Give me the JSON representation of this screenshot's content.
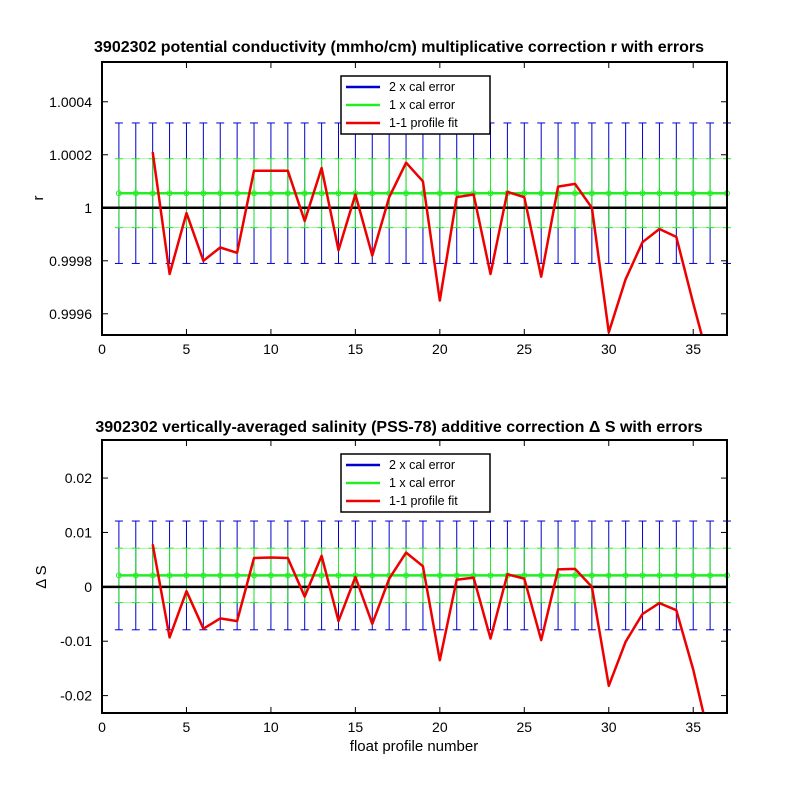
{
  "chart_data": [
    {
      "type": "line",
      "title": "3902302 potential conductivity (mmho/cm) multiplicative correction r with errors",
      "xlabel": "",
      "ylabel": "r",
      "xlim": [
        0,
        37
      ],
      "ylim": [
        0.99952,
        1.00055
      ],
      "xticks": [
        0,
        5,
        10,
        15,
        20,
        25,
        30,
        35
      ],
      "xtick_labels": [
        "0",
        "5",
        "10",
        "15",
        "20",
        "25",
        "30",
        "35"
      ],
      "yticks": [
        0.9996,
        0.9998,
        1.0,
        1.0002,
        1.0004
      ],
      "ytick_labels": [
        "0.9996",
        "0.9998",
        "1",
        "1.0002",
        "1.0004"
      ],
      "grid": false,
      "legend_position": "top-center",
      "reference_line": 1.0,
      "error_x": [
        1,
        2,
        3,
        4,
        5,
        6,
        7,
        8,
        9,
        10,
        11,
        12,
        13,
        14,
        15,
        16,
        17,
        18,
        19,
        20,
        21,
        22,
        23,
        24,
        25,
        26,
        27,
        28,
        29,
        30,
        31,
        32,
        33,
        34,
        35,
        36,
        37
      ],
      "cal_center": 1.000055,
      "err2": 0.000265,
      "err1": 0.00013,
      "series": [
        {
          "name": "2 x cal error",
          "color": "#0000cc",
          "kind": "errorbar2"
        },
        {
          "name": "1 x cal error",
          "color": "#22ee22",
          "kind": "errorbar1"
        },
        {
          "name": "1-1 profile fit",
          "color": "#ee0000",
          "kind": "line",
          "x": [
            3,
            4,
            5,
            6,
            7,
            8,
            9,
            10,
            11,
            12,
            13,
            14,
            15,
            16,
            17,
            18,
            19,
            20,
            21,
            22,
            23,
            24,
            25,
            26,
            27,
            28,
            29,
            30,
            31,
            32,
            33,
            34,
            35,
            35.5
          ],
          "y": [
            1.00021,
            0.99975,
            0.99998,
            0.9998,
            0.99985,
            0.99983,
            1.00014,
            1.00014,
            1.00014,
            0.99995,
            1.00015,
            0.99984,
            1.00005,
            0.99982,
            1.00004,
            1.00017,
            1.0001,
            0.99965,
            1.00004,
            1.00005,
            0.99975,
            1.00006,
            1.00004,
            0.99974,
            1.00008,
            1.00009,
            1.0,
            0.99953,
            0.99973,
            0.99987,
            0.99992,
            0.99989,
            0.99964,
            0.99952
          ]
        }
      ]
    },
    {
      "type": "line",
      "title": "3902302 vertically-averaged salinity (PSS-78) additive correction Δ S with errors",
      "xlabel": "float profile number",
      "ylabel": "Δ S",
      "xlim": [
        0,
        37
      ],
      "ylim": [
        -0.0232,
        0.027
      ],
      "xticks": [
        0,
        5,
        10,
        15,
        20,
        25,
        30,
        35
      ],
      "xtick_labels": [
        "0",
        "5",
        "10",
        "15",
        "20",
        "25",
        "30",
        "35"
      ],
      "yticks": [
        -0.02,
        -0.01,
        0,
        0.01,
        0.02
      ],
      "ytick_labels": [
        "-0.02",
        "-0.01",
        "0",
        "0.01",
        "0.02"
      ],
      "grid": false,
      "legend_position": "top-center",
      "reference_line": 0,
      "error_x": [
        1,
        2,
        3,
        4,
        5,
        6,
        7,
        8,
        9,
        10,
        11,
        12,
        13,
        14,
        15,
        16,
        17,
        18,
        19,
        20,
        21,
        22,
        23,
        24,
        25,
        26,
        27,
        28,
        29,
        30,
        31,
        32,
        33,
        34,
        35,
        36,
        37
      ],
      "cal_center": 0.0021,
      "err2": 0.01,
      "err1": 0.005,
      "series": [
        {
          "name": "2 x cal error",
          "color": "#0000cc",
          "kind": "errorbar2"
        },
        {
          "name": "1 x cal error",
          "color": "#22ee22",
          "kind": "errorbar1"
        },
        {
          "name": "1-1 profile fit",
          "color": "#ee0000",
          "kind": "line",
          "x": [
            3,
            4,
            5,
            6,
            7,
            8,
            9,
            10,
            11,
            12,
            13,
            14,
            15,
            16,
            17,
            18,
            19,
            20,
            21,
            22,
            23,
            24,
            25,
            26,
            27,
            28,
            29,
            30,
            31,
            32,
            33,
            34,
            35,
            35.6
          ],
          "y": [
            0.0078,
            -0.0093,
            -0.0008,
            -0.0077,
            -0.0058,
            -0.0063,
            0.0053,
            0.0054,
            0.0053,
            -0.0018,
            0.0057,
            -0.0063,
            0.0018,
            -0.0068,
            0.0015,
            0.0063,
            0.0038,
            -0.0135,
            0.0013,
            0.0017,
            -0.0095,
            0.0023,
            0.0015,
            -0.0098,
            0.0032,
            0.0033,
            0.0,
            -0.0182,
            -0.0101,
            -0.005,
            -0.003,
            -0.0043,
            -0.0152,
            -0.0232
          ]
        }
      ]
    }
  ]
}
